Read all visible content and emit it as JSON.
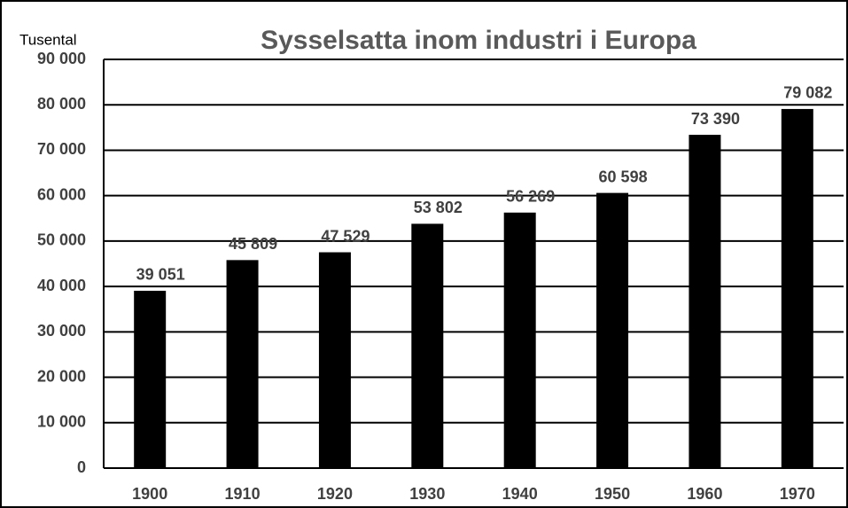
{
  "chart_data": {
    "type": "bar",
    "title": "Sysselsatta inom industri i Europa",
    "y_label": "Tusental",
    "categories": [
      "1900",
      "1910",
      "1920",
      "1930",
      "1940",
      "1950",
      "1960",
      "1970"
    ],
    "values": [
      39051,
      45809,
      47529,
      53802,
      56269,
      60598,
      73390,
      79082
    ],
    "value_labels": [
      "39 051",
      "45 809",
      "47 529",
      "53 802",
      "56 269",
      "60 598",
      "73 390",
      "79 082"
    ],
    "color": "#000000",
    "ylim": [
      0,
      90000
    ],
    "yticks": [
      0,
      {
        "value": 10000,
        "label": "10 000"
      },
      {
        "value": 20000,
        "label": "20 000"
      },
      {
        "value": 30000,
        "label": "30 000"
      },
      {
        "value": 40000,
        "label": "40 000"
      },
      {
        "value": 50000,
        "label": "50 000"
      },
      {
        "value": 60000,
        "label": "60 000"
      },
      {
        "value": 70000,
        "label": "70 000"
      },
      {
        "value": 80000,
        "label": "80 000"
      },
      {
        "value": 90000,
        "label": "90 000"
      }
    ],
    "grid": true
  }
}
